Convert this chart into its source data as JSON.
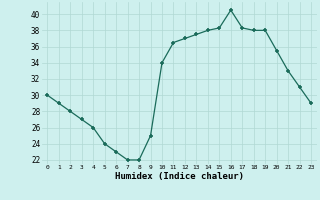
{
  "x": [
    0,
    1,
    2,
    3,
    4,
    5,
    6,
    7,
    8,
    9,
    10,
    11,
    12,
    13,
    14,
    15,
    16,
    17,
    18,
    19,
    20,
    21,
    22,
    23
  ],
  "y": [
    30,
    29,
    28,
    27,
    26,
    24,
    23,
    22,
    22,
    25,
    34,
    36.5,
    37,
    37.5,
    38,
    38.3,
    40.5,
    38.3,
    38,
    38,
    35.5,
    33,
    31,
    29
  ],
  "line_color": "#1a6b5a",
  "marker": "+",
  "marker_size": 3,
  "bg_color": "#cef0ee",
  "grid_color": "#b0d8d4",
  "xlabel": "Humidex (Indice chaleur)",
  "ylabel_ticks": [
    22,
    24,
    26,
    28,
    30,
    32,
    34,
    36,
    38,
    40
  ],
  "xlim": [
    -0.5,
    23.5
  ],
  "ylim": [
    21.5,
    41.5
  ],
  "xtick_labels": [
    "0",
    "1",
    "2",
    "3",
    "4",
    "5",
    "6",
    "7",
    "8",
    "9",
    "10",
    "11",
    "12",
    "13",
    "14",
    "15",
    "16",
    "17",
    "18",
    "19",
    "20",
    "21",
    "22",
    "23"
  ]
}
